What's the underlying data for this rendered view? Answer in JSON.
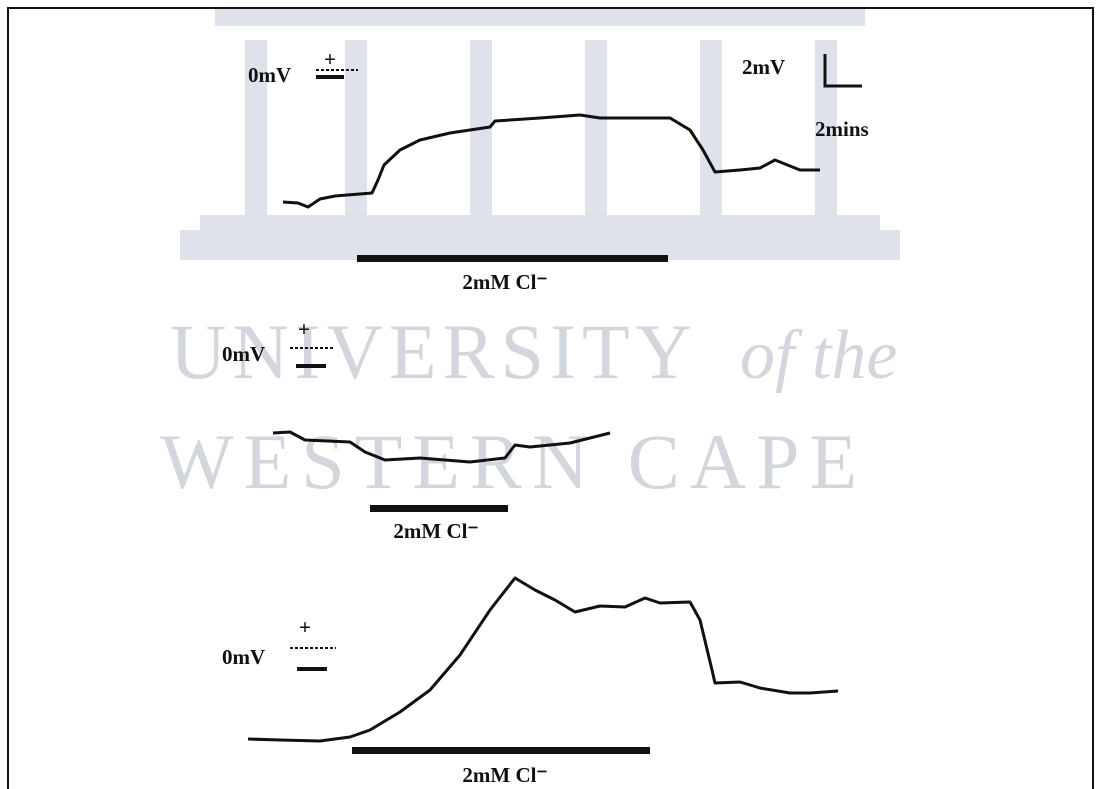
{
  "watermark": {
    "line1": "UNIVERSITY",
    "line1_italic": "of the",
    "line2": "WESTERN CAPE"
  },
  "scale_bar": {
    "vertical": "2mV",
    "horizontal": "2mins"
  },
  "panels": [
    {
      "zero_label": "0mV",
      "plus": "+",
      "stimulus_label": "2mM Cl⁻"
    },
    {
      "zero_label": "0mV",
      "plus": "+",
      "stimulus_label": "2mM Cl⁻"
    },
    {
      "zero_label": "0mV",
      "plus": "+",
      "stimulus_label": "2mM Cl⁻"
    }
  ]
}
